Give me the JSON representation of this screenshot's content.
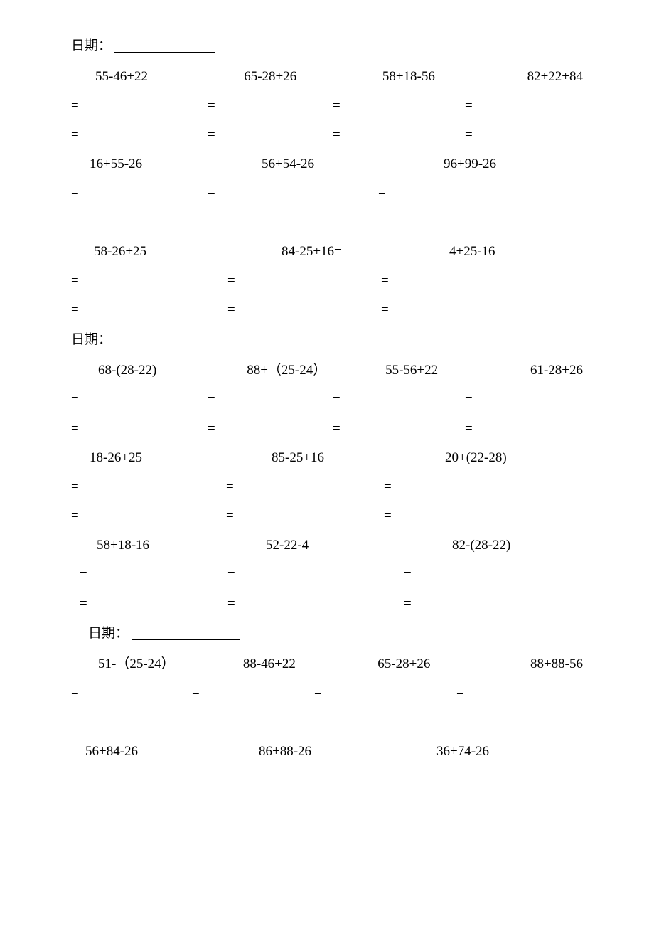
{
  "blocks": [
    {
      "date_label": "日期：",
      "date_blank_width": 142,
      "date_indent": 0,
      "date_margin_top": 0,
      "rows": [
        {
          "type": "4col",
          "expr_indent": 34,
          "eq_indent": 0,
          "cols": [
            "c4-1",
            "c4-2",
            "c4-3",
            "c4-4"
          ],
          "eq_cols": [
            "c4-1",
            "c4-2",
            "c4-3",
            "c4-4"
          ],
          "problems": [
            "55-46+22",
            "65-28+26",
            "58+18-56",
            "82+22+84"
          ]
        },
        {
          "type": "3col",
          "expr_indent": 26,
          "eq_indent": 0,
          "cols": [
            "c3a-1",
            "c3a-2",
            "c3a-3"
          ],
          "eq_cols": [
            "c3a-e1",
            "c3a-e2",
            "c3a-e3"
          ],
          "problems": [
            "16+55-26",
            "56+54-26",
            "96+99-26"
          ]
        },
        {
          "type": "3col",
          "expr_indent": 32,
          "eq_indent": 0,
          "cols": [
            "c3b-1",
            "c3b-2",
            "c3b-3"
          ],
          "eq_cols": [
            "c3b-e1",
            "c3b-e2",
            "c3b-e3"
          ],
          "problems": [
            "58-26+25",
            "84-25+16=",
            "4+25-16"
          ]
        }
      ]
    },
    {
      "date_label": "日期：",
      "date_blank_width": 114,
      "date_indent": 0,
      "date_margin_top": 6,
      "rows": [
        {
          "type": "4col",
          "expr_indent": 38,
          "eq_indent": 0,
          "cols": [
            "c4-1",
            "c4-2",
            "c4-3",
            "c4-4"
          ],
          "eq_cols": [
            "c4-1",
            "c4-2",
            "c4-3",
            "c4-4"
          ],
          "problems": [
            "68-(28-22)",
            "88+（25-24）",
            "55-56+22",
            "61-28+26"
          ]
        },
        {
          "type": "3col",
          "expr_indent": 26,
          "eq_indent": 0,
          "cols": [
            "c3c-1",
            "c3c-2",
            "c3c-3"
          ],
          "eq_cols": [
            "c3c-e1",
            "c3c-e2",
            "c3c-e3"
          ],
          "problems": [
            "18-26+25",
            "85-25+16",
            "20+(22-28)"
          ]
        },
        {
          "type": "3col",
          "expr_indent": 36,
          "eq_indent": 12,
          "cols": [
            "c3d-1",
            "c3d-2",
            "c3d-3"
          ],
          "eq_cols": [
            "c3d-e1",
            "c3d-e2",
            "c3d-e3"
          ],
          "problems": [
            "58+18-16",
            "52-22-4",
            "82-(28-22)"
          ]
        }
      ]
    },
    {
      "date_label": "日期：",
      "date_blank_width": 152,
      "date_indent": 24,
      "date_margin_top": 6,
      "rows": [
        {
          "type": "4col",
          "expr_indent": 38,
          "eq_indent": 0,
          "cols": [
            "c4b-1",
            "c4b-2",
            "c4b-3",
            "c4b-4"
          ],
          "eq_cols": [
            "c4b-e1",
            "c4b-e2",
            "c4b-e3",
            "c4b-e4"
          ],
          "problems": [
            "51-（25-24）",
            "88-46+22",
            "65-28+26",
            "88+88-56"
          ]
        },
        {
          "type": "3col_noeq",
          "expr_indent": 20,
          "cols": [
            "c3e-1",
            "c3e-2",
            "c3e-3"
          ],
          "problems": [
            "56+84-26",
            "86+88-26",
            "36+74-26"
          ]
        }
      ]
    }
  ]
}
